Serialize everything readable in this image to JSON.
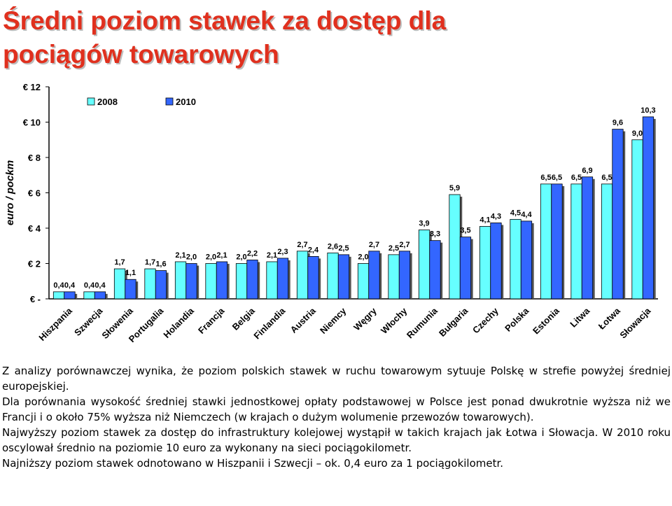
{
  "title_lines": [
    "Średni poziom stawek za dostęp dla",
    "pociągów towarowych"
  ],
  "chart_data": {
    "type": "bar",
    "ylabel": "euro / pockm",
    "ylim": [
      0,
      12
    ],
    "yticks": [
      {
        "value": 0,
        "label": "€ -"
      },
      {
        "value": 2,
        "label": "€ 2"
      },
      {
        "value": 4,
        "label": "€ 4"
      },
      {
        "value": 6,
        "label": "€ 6"
      },
      {
        "value": 8,
        "label": "€ 8"
      },
      {
        "value": 10,
        "label": "€ 10"
      },
      {
        "value": 12,
        "label": "€ 12"
      }
    ],
    "categories": [
      "Hiszpania",
      "Szwecja",
      "Słowenia",
      "Portugalia",
      "Holandia",
      "Francja",
      "Belgia",
      "Finlandia",
      "Austria",
      "Niemcy",
      "Węgry",
      "Włochy",
      "Rumunia",
      "Bułgaria",
      "Czechy",
      "Polska",
      "Estonia",
      "Litwa",
      "Łotwa",
      "Słowacja"
    ],
    "series": [
      {
        "name": "2008",
        "color": "#66ffff",
        "values": [
          0.4,
          0.4,
          1.7,
          1.7,
          2.1,
          2.0,
          2.0,
          2.1,
          2.7,
          2.6,
          2.0,
          2.5,
          3.9,
          5.9,
          4.1,
          4.5,
          6.5,
          6.5,
          6.5,
          9.0
        ]
      },
      {
        "name": "2010",
        "color": "#3366ff",
        "values": [
          0.4,
          0.4,
          1.1,
          1.6,
          2.0,
          2.1,
          2.2,
          2.3,
          2.4,
          2.5,
          2.7,
          2.7,
          3.3,
          3.5,
          4.3,
          4.4,
          6.5,
          6.9,
          9.6,
          10.3
        ]
      }
    ],
    "data_labels": {
      "2008": [
        "0,4",
        "0,4",
        "1,7",
        "1,7",
        "2,1",
        "2,0",
        "2,0",
        "2,1",
        "2,7",
        "2,6",
        "2,0",
        "2,5",
        "3,9",
        "5,9",
        "4,1",
        "4,5",
        "6,5",
        "6,5",
        "6,5",
        "9,0"
      ],
      "2010": [
        "0,4",
        "0,4",
        "1,1",
        "1,6",
        "2,0",
        "2,1",
        "2,2",
        "2,3",
        "2,4",
        "2,5",
        "2,7",
        "2,7",
        "3,3",
        "3,5",
        "4,3",
        "4,4",
        "6,5",
        "6,9",
        "9,6",
        "10,3"
      ]
    },
    "grid": false,
    "legend_position": "top-left"
  },
  "paragraphs": [
    "Z analizy porównawczej wynika, że poziom polskich stawek w ruchu towarowym sytuuje Polskę w strefie powyżej średniej europejskiej.",
    "Dla porównania wysokość średniej stawki jednostkowej opłaty podstawowej w Polsce jest ponad dwukrotnie wyższa niż we Francji i o około 75% wyższa niż Niemczech (w krajach o dużym wolumenie przewozów towarowych).",
    "Najwyższy poziom stawek za dostęp do infrastruktury kolejowej wystąpił w takich krajach jak Łotwa i Słowacja. W 2010 roku oscylował średnio na poziomie 10 euro za wykonany na sieci pociągokilometr.",
    "Najniższy poziom stawek odnotowano w Hiszpanii i Szwecji – ok. 0,4 euro za 1 pociągokilometr."
  ]
}
